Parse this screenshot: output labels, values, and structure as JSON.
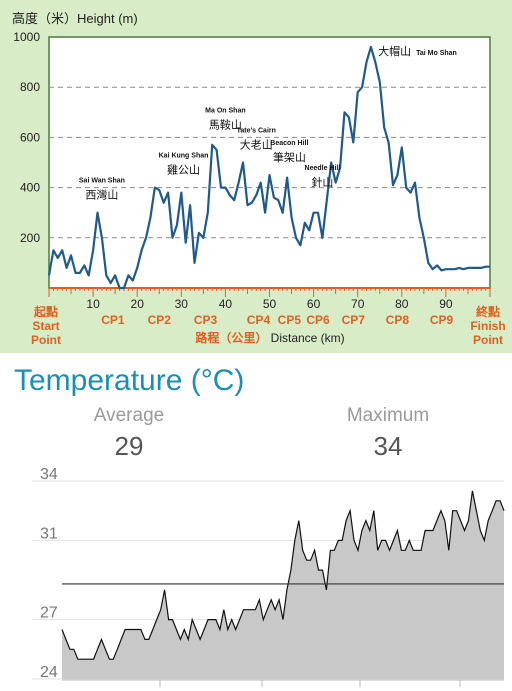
{
  "chart_data": [
    {
      "type": "line",
      "ylabel": "高度（米）Height (m)",
      "xlabel": "路程（公里）Distance (km)",
      "xlim": [
        0,
        100
      ],
      "ylim": [
        0,
        1000
      ],
      "y_ticks": [
        200,
        400,
        600,
        800,
        1000
      ],
      "x_ticks": [
        10,
        20,
        30,
        40,
        50,
        60,
        70,
        80,
        90
      ],
      "grid": "horizontal dashed",
      "colors": {
        "line": "#1f5a8c",
        "axis": "#e0611f",
        "checkpoint": "#e0611f",
        "background": "#d9ecc8",
        "plot_bg": "#ffffff"
      },
      "series": [
        {
          "x": [
            0,
            1,
            2,
            3,
            4,
            5,
            6,
            7,
            8,
            9,
            10,
            11,
            12,
            13,
            14,
            15,
            16,
            17,
            18,
            19,
            20,
            21,
            22,
            23,
            24,
            25,
            26,
            27,
            28,
            29,
            30,
            31,
            32,
            33,
            34,
            35,
            36,
            37,
            38,
            39,
            40,
            41,
            42,
            43,
            44,
            45,
            46,
            47,
            48,
            49,
            50,
            51,
            52,
            53,
            54,
            55,
            56,
            57,
            58,
            59,
            60,
            61,
            62,
            63,
            64,
            65,
            66,
            67,
            68,
            69,
            70,
            71,
            72,
            73,
            74,
            75,
            76,
            77,
            78,
            79,
            80,
            81,
            82,
            83,
            84,
            85,
            86,
            87,
            88,
            89,
            90,
            91,
            92,
            93,
            94,
            95,
            96,
            97,
            98,
            99,
            100
          ],
          "values": [
            50,
            150,
            120,
            150,
            80,
            130,
            60,
            60,
            90,
            50,
            150,
            300,
            200,
            50,
            20,
            50,
            0,
            0,
            50,
            30,
            80,
            150,
            200,
            280,
            400,
            390,
            340,
            380,
            200,
            250,
            380,
            180,
            330,
            100,
            220,
            200,
            300,
            570,
            550,
            400,
            400,
            370,
            350,
            420,
            500,
            330,
            340,
            370,
            420,
            300,
            450,
            360,
            350,
            300,
            440,
            280,
            200,
            170,
            260,
            230,
            300,
            300,
            200,
            350,
            500,
            420,
            480,
            700,
            680,
            580,
            780,
            800,
            900,
            960,
            900,
            820,
            640,
            580,
            410,
            450,
            560,
            400,
            380,
            420,
            280,
            200,
            100,
            75,
            90,
            70,
            75,
            75,
            75,
            80,
            75,
            80,
            80,
            80,
            80,
            85,
            85
          ]
        }
      ],
      "checkpoints": [
        {
          "label": "CP1",
          "x": 14.5
        },
        {
          "label": "CP2",
          "x": 25
        },
        {
          "label": "CP3",
          "x": 35.5
        },
        {
          "label": "CP4",
          "x": 47.5
        },
        {
          "label": "CP5",
          "x": 54.5
        },
        {
          "label": "CP6",
          "x": 61
        },
        {
          "label": "CP7",
          "x": 69
        },
        {
          "label": "CP8",
          "x": 79
        },
        {
          "label": "CP9",
          "x": 89
        }
      ],
      "start_label": [
        "起點",
        "Start",
        "Point"
      ],
      "finish_label": [
        "終點",
        "Finish",
        "Point"
      ],
      "peaks": [
        {
          "en": "Sai Wan Shan",
          "zh": "西灣山",
          "x": 12,
          "y": 300
        },
        {
          "en": "Kai Kung Shan",
          "zh": "雞公山",
          "x": 30.5,
          "y": 400
        },
        {
          "en": "Ma On Shan",
          "zh": "馬鞍山",
          "x": 40,
          "y": 580
        },
        {
          "en": "Tate's Cairn",
          "zh": "大老山",
          "x": 47,
          "y": 500
        },
        {
          "en": "Beacon Hill",
          "zh": "筆架山",
          "x": 54.5,
          "y": 450
        },
        {
          "en": "Needle Hill",
          "zh": "針山",
          "x": 62,
          "y": 350
        },
        {
          "en": "Tai Mo Shan",
          "zh": "大帽山",
          "x": 73.5,
          "y": 960
        }
      ]
    },
    {
      "type": "area",
      "title": "Temperature (°C)",
      "ylim": [
        24,
        34
      ],
      "y_ticks": [
        24,
        27,
        31,
        34
      ],
      "average": 29,
      "maximum": 34,
      "average_line_value": 28.8,
      "colors": {
        "fill": "#c8c8c8",
        "line": "#111111",
        "title": "#1a8fb3"
      },
      "values": [
        26.5,
        26,
        25.5,
        25.5,
        25,
        25,
        25,
        25,
        25,
        25.5,
        26,
        25.5,
        25,
        25,
        25.5,
        26,
        26.5,
        26.5,
        26.5,
        26.5,
        26.5,
        26,
        26,
        26.5,
        27,
        27.5,
        28.5,
        27,
        27,
        26.5,
        26,
        26.5,
        26,
        27,
        26.5,
        26,
        26.5,
        27,
        27,
        27,
        26.5,
        27.5,
        26.5,
        27,
        26.5,
        27,
        27.5,
        27.5,
        27.5,
        27.5,
        28,
        27,
        27.5,
        28,
        27.5,
        28,
        27,
        28.5,
        29.5,
        31,
        32,
        30.5,
        30,
        30,
        30.5,
        29.5,
        29.5,
        28.5,
        30.5,
        30.5,
        31,
        31,
        32,
        32.5,
        31,
        30.5,
        31.5,
        32,
        31.5,
        32.5,
        30.5,
        31,
        31,
        30.5,
        31,
        31.5,
        30.5,
        30.5,
        31,
        30.5,
        30.5,
        30.5,
        31.5,
        31.5,
        31.5,
        32,
        32.5,
        32,
        30.5,
        32.5,
        32.5,
        32,
        31.5,
        32,
        33.5,
        32.5,
        31.5,
        31,
        32,
        32.5,
        33,
        33,
        32.5
      ]
    }
  ],
  "elevation": {
    "y_axis_label": "高度（米）Height (m)",
    "x_axis_label_zh": "路程（公里）",
    "x_axis_label_en": "Distance (km)"
  },
  "temperature": {
    "title": "Temperature (°C)",
    "average_label": "Average",
    "average_value": "29",
    "maximum_label": "Maximum",
    "maximum_value": "34"
  }
}
